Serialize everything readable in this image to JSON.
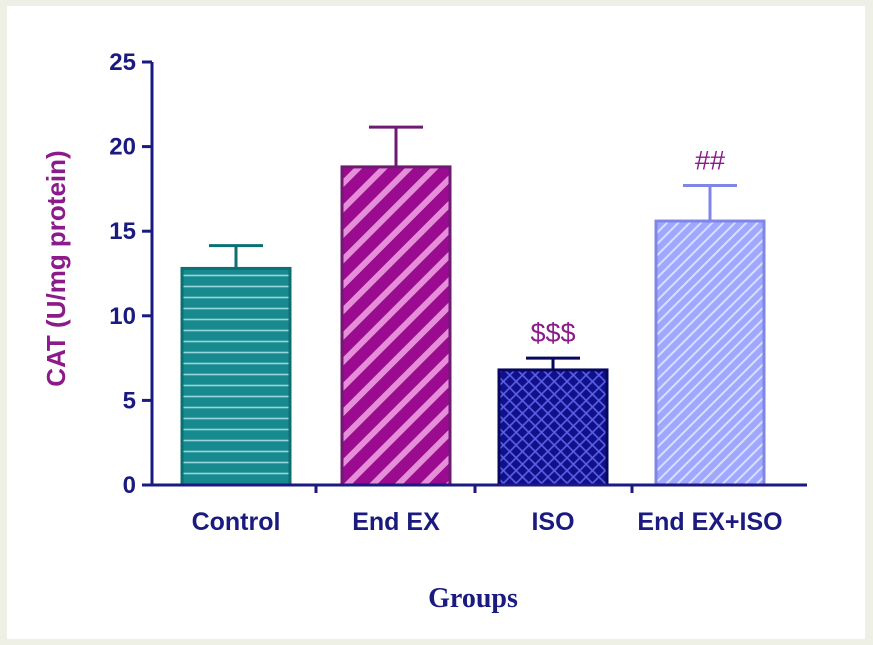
{
  "chart_data": {
    "type": "bar",
    "title": "",
    "xlabel": "Groups",
    "ylabel": "CAT (U/mg protein)",
    "ylim": [
      0,
      25
    ],
    "yticks": [
      0,
      5,
      10,
      15,
      20,
      25
    ],
    "categories": [
      "Control",
      "End EX",
      "ISO",
      "End EX+ISO"
    ],
    "values": [
      12.8,
      18.8,
      6.8,
      15.6
    ],
    "errors": [
      1.35,
      2.35,
      0.7,
      2.1
    ],
    "annotations": [
      "",
      "",
      "$$$",
      "##"
    ],
    "grid": false,
    "legend": "none",
    "colors": {
      "axis": "#1a1a80",
      "ylabel": "#8b1a8b",
      "annotation": "#8b1a8b",
      "bars": [
        {
          "fill": "#168a8f",
          "pattern": "#9ad7dc",
          "stroke": "#0e6f73"
        },
        {
          "fill": "#9a0b90",
          "pattern": "#e48fd8",
          "stroke": "#6e1a73"
        },
        {
          "fill": "#10108a",
          "pattern": "#5a62e6",
          "stroke": "#070760"
        },
        {
          "fill": "#9fa7ff",
          "pattern": "#d9ddff",
          "stroke": "#7f86e6"
        }
      ]
    }
  }
}
